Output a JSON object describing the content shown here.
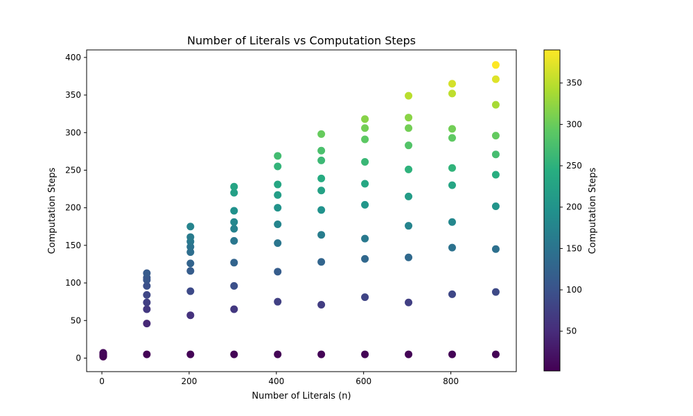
{
  "chart_data": {
    "type": "scatter",
    "title": "Number of Literals vs Computation Steps",
    "xlabel": "Number of Literals (n)",
    "ylabel": "Computation Steps",
    "xlim": [
      -35,
      950
    ],
    "ylim": [
      -18,
      410
    ],
    "xticks": [
      0,
      200,
      400,
      600,
      800
    ],
    "yticks": [
      0,
      50,
      100,
      150,
      200,
      250,
      300,
      350,
      400
    ],
    "grid": false,
    "colorbar": {
      "label": "Computation Steps",
      "colormap": "viridis",
      "range": [
        2,
        390
      ],
      "ticks": [
        50,
        100,
        150,
        200,
        250,
        300,
        350
      ]
    },
    "points": [
      {
        "x": 3,
        "y": 2
      },
      {
        "x": 3,
        "y": 3
      },
      {
        "x": 3,
        "y": 4
      },
      {
        "x": 3,
        "y": 5
      },
      {
        "x": 3,
        "y": 6
      },
      {
        "x": 3,
        "y": 7
      },
      {
        "x": 103,
        "y": 5
      },
      {
        "x": 103,
        "y": 46
      },
      {
        "x": 103,
        "y": 65
      },
      {
        "x": 103,
        "y": 74
      },
      {
        "x": 103,
        "y": 84
      },
      {
        "x": 103,
        "y": 96
      },
      {
        "x": 103,
        "y": 104
      },
      {
        "x": 103,
        "y": 107
      },
      {
        "x": 103,
        "y": 113
      },
      {
        "x": 203,
        "y": 5
      },
      {
        "x": 203,
        "y": 57
      },
      {
        "x": 203,
        "y": 89
      },
      {
        "x": 203,
        "y": 116
      },
      {
        "x": 203,
        "y": 126
      },
      {
        "x": 203,
        "y": 141
      },
      {
        "x": 203,
        "y": 148
      },
      {
        "x": 203,
        "y": 155
      },
      {
        "x": 203,
        "y": 161
      },
      {
        "x": 203,
        "y": 175
      },
      {
        "x": 303,
        "y": 5
      },
      {
        "x": 303,
        "y": 65
      },
      {
        "x": 303,
        "y": 96
      },
      {
        "x": 303,
        "y": 127
      },
      {
        "x": 303,
        "y": 156
      },
      {
        "x": 303,
        "y": 172
      },
      {
        "x": 303,
        "y": 181
      },
      {
        "x": 303,
        "y": 196
      },
      {
        "x": 303,
        "y": 220
      },
      {
        "x": 303,
        "y": 228
      },
      {
        "x": 403,
        "y": 5
      },
      {
        "x": 403,
        "y": 75
      },
      {
        "x": 403,
        "y": 115
      },
      {
        "x": 403,
        "y": 153
      },
      {
        "x": 403,
        "y": 178
      },
      {
        "x": 403,
        "y": 200
      },
      {
        "x": 403,
        "y": 217
      },
      {
        "x": 403,
        "y": 231
      },
      {
        "x": 403,
        "y": 255
      },
      {
        "x": 403,
        "y": 269
      },
      {
        "x": 503,
        "y": 5
      },
      {
        "x": 503,
        "y": 71
      },
      {
        "x": 503,
        "y": 128
      },
      {
        "x": 503,
        "y": 164
      },
      {
        "x": 503,
        "y": 197
      },
      {
        "x": 503,
        "y": 223
      },
      {
        "x": 503,
        "y": 239
      },
      {
        "x": 503,
        "y": 263
      },
      {
        "x": 503,
        "y": 276
      },
      {
        "x": 503,
        "y": 298
      },
      {
        "x": 603,
        "y": 5
      },
      {
        "x": 603,
        "y": 81
      },
      {
        "x": 603,
        "y": 132
      },
      {
        "x": 603,
        "y": 159
      },
      {
        "x": 603,
        "y": 204
      },
      {
        "x": 603,
        "y": 232
      },
      {
        "x": 603,
        "y": 261
      },
      {
        "x": 603,
        "y": 291
      },
      {
        "x": 603,
        "y": 306
      },
      {
        "x": 603,
        "y": 318
      },
      {
        "x": 703,
        "y": 5
      },
      {
        "x": 703,
        "y": 74
      },
      {
        "x": 703,
        "y": 134
      },
      {
        "x": 703,
        "y": 176
      },
      {
        "x": 703,
        "y": 215
      },
      {
        "x": 703,
        "y": 251
      },
      {
        "x": 703,
        "y": 283
      },
      {
        "x": 703,
        "y": 306
      },
      {
        "x": 703,
        "y": 320
      },
      {
        "x": 703,
        "y": 349
      },
      {
        "x": 803,
        "y": 5
      },
      {
        "x": 803,
        "y": 85
      },
      {
        "x": 803,
        "y": 147
      },
      {
        "x": 803,
        "y": 181
      },
      {
        "x": 803,
        "y": 230
      },
      {
        "x": 803,
        "y": 253
      },
      {
        "x": 803,
        "y": 293
      },
      {
        "x": 803,
        "y": 305
      },
      {
        "x": 803,
        "y": 352
      },
      {
        "x": 803,
        "y": 365
      },
      {
        "x": 903,
        "y": 5
      },
      {
        "x": 903,
        "y": 88
      },
      {
        "x": 903,
        "y": 145
      },
      {
        "x": 903,
        "y": 202
      },
      {
        "x": 903,
        "y": 244
      },
      {
        "x": 903,
        "y": 271
      },
      {
        "x": 903,
        "y": 296
      },
      {
        "x": 903,
        "y": 337
      },
      {
        "x": 903,
        "y": 371
      },
      {
        "x": 903,
        "y": 390
      }
    ]
  }
}
